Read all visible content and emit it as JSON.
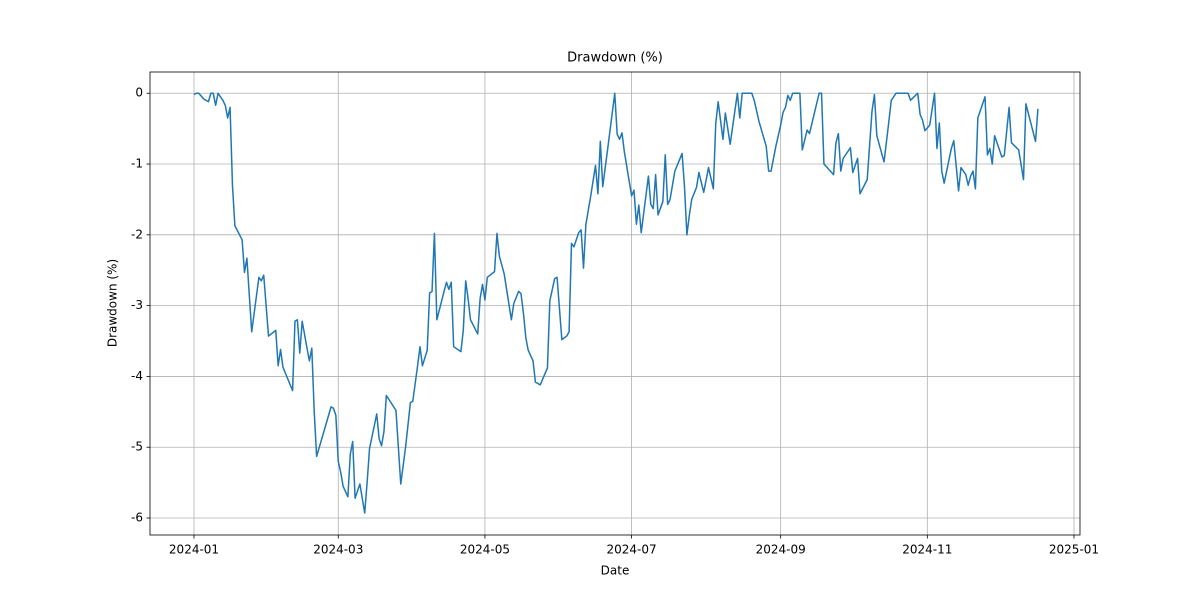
{
  "chart_data": {
    "type": "line",
    "title": "Drawdown (%)",
    "xlabel": "Date",
    "ylabel": "Drawdown (%)",
    "color": "#1f77b4",
    "grid": true,
    "x": [
      0,
      1,
      2,
      4,
      6,
      7,
      8,
      9,
      10,
      12,
      13,
      14,
      15,
      16,
      17,
      20,
      21,
      22,
      24,
      27,
      28,
      29,
      31,
      34,
      35,
      36,
      37,
      41,
      42,
      43,
      44,
      45,
      47,
      48,
      49,
      50,
      51,
      57,
      58,
      59,
      60,
      61,
      62,
      64,
      65,
      66,
      67,
      69,
      71,
      72,
      73,
      76,
      77,
      78,
      79,
      80,
      84,
      86,
      88,
      90,
      91,
      93,
      94,
      95,
      97,
      98,
      99,
      100,
      101,
      104,
      105,
      106,
      107,
      108,
      111,
      112,
      113,
      114,
      115,
      118,
      119,
      120,
      121,
      122,
      125,
      126,
      127,
      129,
      132,
      133,
      135,
      136,
      137,
      138,
      139,
      141,
      142,
      144,
      147,
      148,
      150,
      151,
      153,
      155,
      156,
      157,
      158,
      160,
      161,
      162,
      163,
      165,
      167,
      168,
      169,
      170,
      172,
      175,
      176,
      177,
      178,
      179,
      182,
      183,
      184,
      185,
      186,
      189,
      190,
      191,
      192,
      193,
      195,
      196,
      197,
      198,
      200,
      203,
      204,
      205,
      206,
      207,
      209,
      210,
      212,
      214,
      216,
      217,
      218,
      220,
      221,
      223,
      226,
      227,
      228,
      232,
      233,
      235,
      238,
      239,
      240,
      242,
      244,
      245,
      246,
      247,
      248,
      249,
      252,
      253,
      255,
      256,
      260,
      261,
      262,
      266,
      267,
      268,
      269,
      270,
      273,
      274,
      276,
      277,
      280,
      282,
      283,
      284,
      287,
      289,
      290,
      292,
      297,
      298,
      301,
      302,
      303,
      304,
      306,
      308,
      309,
      310,
      311,
      312,
      315,
      316,
      318,
      319,
      321,
      322,
      323,
      324,
      325,
      326,
      329,
      330,
      331,
      332,
      333,
      336,
      337,
      339,
      340,
      343,
      345,
      346,
      350,
      351
    ],
    "values": [
      -0.02,
      0,
      0,
      -0.08,
      -0.12,
      0,
      0,
      -0.17,
      0,
      -0.1,
      -0.17,
      -0.35,
      -0.2,
      -1.3,
      -1.87,
      -2.07,
      -2.53,
      -2.33,
      -3.37,
      -2.6,
      -2.65,
      -2.57,
      -3.43,
      -3.35,
      -3.85,
      -3.62,
      -3.87,
      -4.2,
      -3.22,
      -3.2,
      -3.67,
      -3.22,
      -3.6,
      -3.78,
      -3.6,
      -4.5,
      -5.13,
      -4.43,
      -4.45,
      -4.55,
      -5.2,
      -5.35,
      -5.55,
      -5.7,
      -5.1,
      -4.92,
      -5.72,
      -5.52,
      -5.93,
      -5.5,
      -5.02,
      -4.53,
      -4.88,
      -4.98,
      -4.78,
      -4.27,
      -4.48,
      -5.52,
      -5.0,
      -4.37,
      -4.35,
      -3.85,
      -3.58,
      -3.85,
      -3.63,
      -2.82,
      -2.8,
      -1.98,
      -3.2,
      -2.8,
      -2.67,
      -2.77,
      -2.67,
      -3.58,
      -3.65,
      -3.35,
      -2.65,
      -2.9,
      -3.2,
      -3.4,
      -2.9,
      -2.7,
      -2.92,
      -2.6,
      -2.52,
      -1.98,
      -2.3,
      -2.55,
      -3.2,
      -2.97,
      -2.8,
      -2.83,
      -3.1,
      -3.45,
      -3.63,
      -3.78,
      -4.08,
      -4.12,
      -3.88,
      -2.93,
      -2.62,
      -2.6,
      -3.48,
      -3.43,
      -3.37,
      -2.12,
      -2.17,
      -1.97,
      -1.93,
      -2.47,
      -1.85,
      -1.45,
      -1.02,
      -1.42,
      -0.68,
      -1.32,
      -0.8,
      0,
      -0.58,
      -0.65,
      -0.56,
      -0.83,
      -1.45,
      -1.37,
      -1.85,
      -1.58,
      -1.97,
      -1.17,
      -1.57,
      -1.63,
      -1.15,
      -1.72,
      -1.53,
      -0.87,
      -1.57,
      -1.5,
      -1.1,
      -0.85,
      -1.32,
      -2.0,
      -1.73,
      -1.5,
      -1.33,
      -1.12,
      -1.4,
      -1.05,
      -1.35,
      -0.43,
      -0.12,
      -0.65,
      -0.28,
      -0.72,
      0,
      -0.35,
      0,
      0,
      -0.1,
      -0.4,
      -0.75,
      -1.1,
      -1.1,
      -0.75,
      -0.45,
      -0.27,
      -0.2,
      -0.03,
      -0.1,
      0,
      0,
      -0.8,
      -0.52,
      -0.57,
      0,
      0,
      -1.0,
      -1.15,
      -0.7,
      -0.57,
      -1.1,
      -0.92,
      -0.77,
      -1.12,
      -0.92,
      -1.42,
      -1.22,
      -0.25,
      -0.02,
      -0.6,
      -0.97,
      -0.4,
      -0.1,
      0,
      0,
      -0.1,
      0,
      -0.3,
      -0.38,
      -0.53,
      -0.45,
      0,
      -0.78,
      -0.42,
      -1.1,
      -1.27,
      -0.78,
      -0.67,
      -1.38,
      -1.05,
      -1.15,
      -1.3,
      -1.17,
      -1.1,
      -1.35,
      -0.35,
      -0.05,
      -0.87,
      -0.78,
      -1.0,
      -0.6,
      -0.9,
      -0.88,
      -0.2,
      -0.7,
      -0.8,
      -1.22,
      -0.15,
      -0.68,
      -0.22
    ],
    "xlim": [
      -18.3,
      368.5
    ],
    "xticks": [
      {
        "value": 0,
        "label": "2024-01"
      },
      {
        "value": 60,
        "label": "2024-03"
      },
      {
        "value": 121,
        "label": "2024-05"
      },
      {
        "value": 182,
        "label": "2024-07"
      },
      {
        "value": 244,
        "label": "2024-09"
      },
      {
        "value": 305,
        "label": "2024-11"
      },
      {
        "value": 366,
        "label": "2025-01"
      }
    ],
    "ylim": [
      -6.24,
      0.3
    ],
    "yticks": [
      {
        "value": -6,
        "label": "-6"
      },
      {
        "value": -5,
        "label": "-5"
      },
      {
        "value": -4,
        "label": "-4"
      },
      {
        "value": -3,
        "label": "-3"
      },
      {
        "value": -2,
        "label": "-2"
      },
      {
        "value": -1,
        "label": "-1"
      },
      0
    ]
  }
}
